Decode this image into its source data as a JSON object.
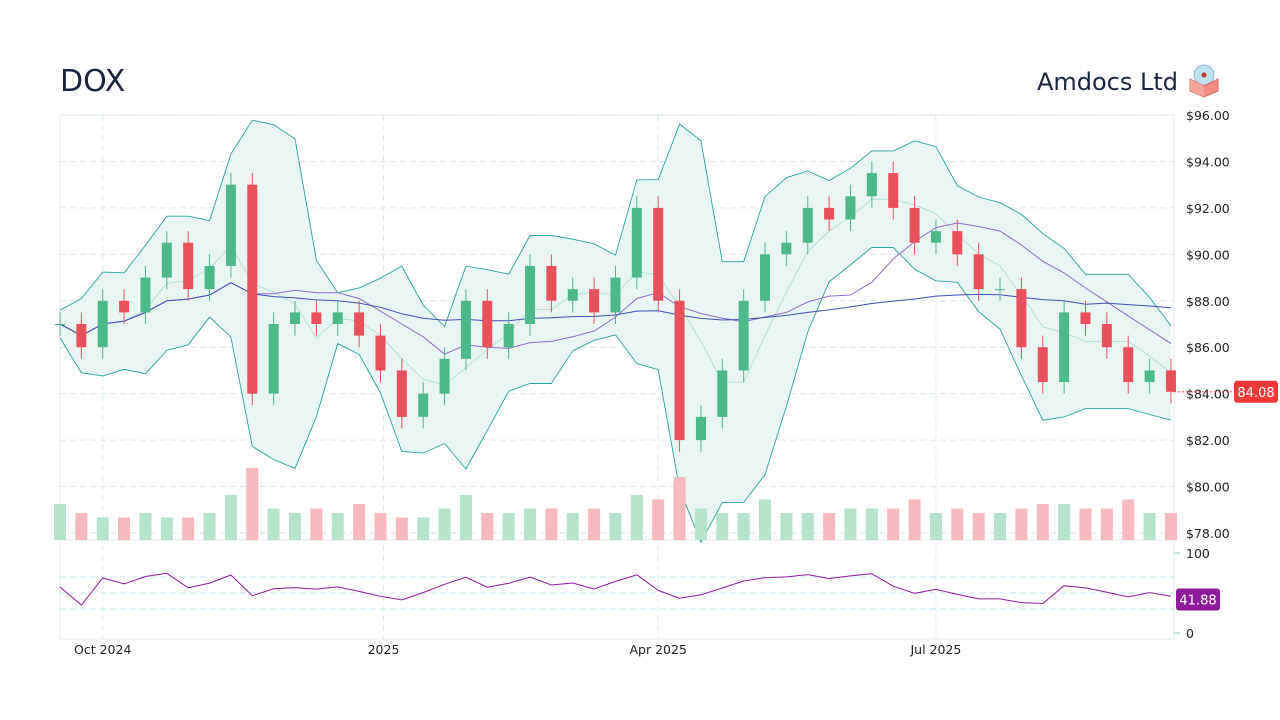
{
  "header": {
    "ticker": "DOX",
    "company": "Amdocs Ltd",
    "logo_icon": "box-with-disc-icon"
  },
  "chart_data": {
    "type": "candlestick",
    "title": "DOX",
    "price_axis": {
      "ticks": [
        "$96.00",
        "$94.00",
        "$92.00",
        "$90.00",
        "$88.00",
        "$86.00",
        "$84.00",
        "$82.00",
        "$80.00",
        "$78.00"
      ],
      "range": [
        78,
        96
      ]
    },
    "x_ticks": [
      {
        "label": "Oct 2024",
        "date": "2024-10-01"
      },
      {
        "label": "2025",
        "date": "2025-01-01"
      },
      {
        "label": "Apr 2025",
        "date": "2025-04-01"
      },
      {
        "label": "Jul 2025",
        "date": "2025-07-01"
      }
    ],
    "last_price_label": "84.08",
    "rsi": {
      "ticks": [
        "100",
        "0"
      ],
      "range": [
        0,
        100
      ],
      "last_label": "41.88",
      "guides": [
        70,
        50,
        30
      ]
    },
    "colors": {
      "up": "#4cb98a",
      "down": "#e8505b",
      "band": "#26a69a",
      "band_fill": "#e9f5f3",
      "sma_short": "#8e6cc9",
      "sma_long": "#3f51b5",
      "rsi": "#8e1c9a",
      "last_price": "#f23a3a",
      "rsi_label": "#8e1c9a"
    },
    "series": {
      "dates": [
        "2024-09-17",
        "2024-09-24",
        "2024-10-01",
        "2024-10-08",
        "2024-10-15",
        "2024-10-22",
        "2024-10-29",
        "2024-11-05",
        "2024-11-12",
        "2024-11-19",
        "2024-11-26",
        "2024-12-03",
        "2024-12-10",
        "2024-12-17",
        "2024-12-24",
        "2024-12-31",
        "2025-01-07",
        "2025-01-14",
        "2025-01-21",
        "2025-01-28",
        "2025-02-04",
        "2025-02-11",
        "2025-02-18",
        "2025-02-25",
        "2025-03-04",
        "2025-03-11",
        "2025-03-18",
        "2025-03-25",
        "2025-04-01",
        "2025-04-08",
        "2025-04-15",
        "2025-04-22",
        "2025-04-29",
        "2025-05-06",
        "2025-05-13",
        "2025-05-20",
        "2025-05-27",
        "2025-06-03",
        "2025-06-10",
        "2025-06-17",
        "2025-06-24",
        "2025-07-01",
        "2025-07-08",
        "2025-07-15",
        "2025-07-22",
        "2025-07-29",
        "2025-08-05",
        "2025-08-12",
        "2025-08-19",
        "2025-08-26",
        "2025-09-02",
        "2025-09-09",
        "2025-09-16"
      ],
      "close": [
        87,
        86,
        88,
        87.5,
        89,
        90.5,
        88.5,
        89.5,
        93,
        84,
        87,
        87.5,
        87,
        87.5,
        86.5,
        85,
        83,
        84,
        85.5,
        88,
        86,
        87,
        89.5,
        88,
        88.5,
        87.5,
        89,
        92,
        88,
        82,
        83,
        85,
        88,
        90,
        90.5,
        92,
        91.5,
        92.5,
        93.5,
        92,
        90.5,
        91,
        90,
        88.5,
        88.5,
        86,
        84.5,
        87.5,
        87,
        86,
        84.5,
        85,
        84.08
      ],
      "volume": [
        0.8,
        0.6,
        0.5,
        0.5,
        0.6,
        0.5,
        0.5,
        0.6,
        1.0,
        1.6,
        0.7,
        0.6,
        0.7,
        0.6,
        0.8,
        0.6,
        0.5,
        0.5,
        0.7,
        1.0,
        0.6,
        0.6,
        0.7,
        0.7,
        0.6,
        0.7,
        0.6,
        1.0,
        0.9,
        1.4,
        0.7,
        0.6,
        0.6,
        0.9,
        0.6,
        0.6,
        0.6,
        0.7,
        0.7,
        0.7,
        0.9,
        0.6,
        0.7,
        0.6,
        0.6,
        0.7,
        0.8,
        0.8,
        0.7,
        0.7,
        0.9,
        0.6,
        0.6
      ]
    }
  }
}
